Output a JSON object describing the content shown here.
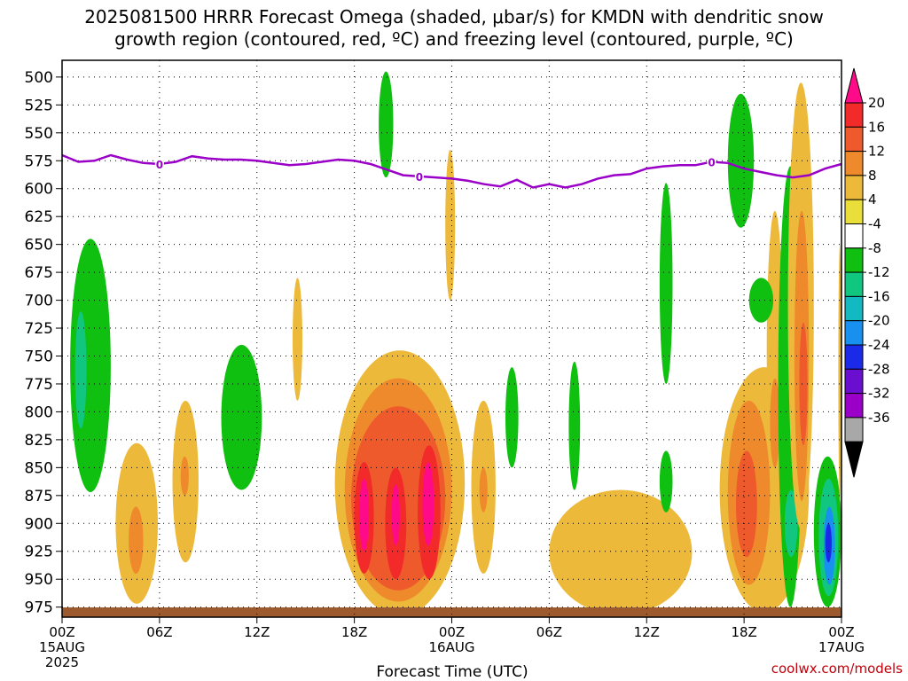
{
  "title": {
    "line1": "2025081500 HRRR Forecast Omega (shaded, μbar/s) for KMDN with dendritic snow",
    "line2": "growth region (contoured, red, ºC) and freezing level (contoured, purple, ºC)"
  },
  "xlabel": "Forecast Time (UTC)",
  "credit": "coolwx.com/models",
  "date_labels": [
    {
      "hour": 0,
      "lines": [
        "00Z",
        "15AUG",
        "2025"
      ]
    },
    {
      "hour": 24,
      "lines": [
        "00Z",
        "16AUG"
      ]
    },
    {
      "hour": 48,
      "lines": [
        "00Z",
        "17AUG"
      ]
    }
  ],
  "chart_data": {
    "type": "heatmap",
    "xlim": [
      0,
      48
    ],
    "ylim": [
      500,
      985
    ],
    "y_scale": "pressure (hPa), increasing downward",
    "x_ticks": [
      {
        "hour": 0,
        "label": "00Z"
      },
      {
        "hour": 6,
        "label": "06Z"
      },
      {
        "hour": 12,
        "label": "12Z"
      },
      {
        "hour": 18,
        "label": "18Z"
      },
      {
        "hour": 24,
        "label": "00Z"
      },
      {
        "hour": 30,
        "label": "06Z"
      },
      {
        "hour": 36,
        "label": "12Z"
      },
      {
        "hour": 42,
        "label": "18Z"
      },
      {
        "hour": 48,
        "label": "00Z"
      }
    ],
    "y_ticks": [
      500,
      525,
      550,
      575,
      600,
      625,
      650,
      675,
      700,
      725,
      750,
      775,
      800,
      825,
      850,
      875,
      900,
      925,
      950,
      975
    ],
    "grid": true,
    "colorbar": {
      "labels": [
        "20",
        "16",
        "12",
        "8",
        "4",
        "-4",
        "-8",
        "-12",
        "-16",
        "-20",
        "-24",
        "-28",
        "-32",
        "-36"
      ],
      "bins": [
        {
          "color": "#ff0a88",
          "value": 22
        },
        {
          "color": "#f22a2a",
          "value": 18
        },
        {
          "color": "#ee5a2b",
          "value": 14
        },
        {
          "color": "#ee8a2b",
          "value": 10
        },
        {
          "color": "#ecb93a",
          "value": 6
        },
        {
          "color": "#e9de3a",
          "value": 4
        },
        {
          "color": "#ffffff",
          "value": 0
        },
        {
          "color": "#10c010",
          "value": -6
        },
        {
          "color": "#11c780",
          "value": -10
        },
        {
          "color": "#13b9c0",
          "value": -14
        },
        {
          "color": "#1890f0",
          "value": -18
        },
        {
          "color": "#1b2ae8",
          "value": -22
        },
        {
          "color": "#6a0fd0",
          "value": -26
        },
        {
          "color": "#9b00c8",
          "value": -30
        },
        {
          "color": "#a8a8a8",
          "value": -34
        },
        {
          "color": "#000000",
          "value": -38
        }
      ]
    },
    "freezing_level": {
      "label": "0",
      "points": [
        [
          0,
          570
        ],
        [
          1,
          576
        ],
        [
          2,
          575
        ],
        [
          3,
          570
        ],
        [
          4,
          574
        ],
        [
          5,
          577
        ],
        [
          6,
          578
        ],
        [
          7,
          576
        ],
        [
          8,
          571
        ],
        [
          9,
          573
        ],
        [
          10,
          574
        ],
        [
          11,
          574
        ],
        [
          12,
          575
        ],
        [
          13,
          577
        ],
        [
          14,
          579
        ],
        [
          15,
          578
        ],
        [
          16,
          576
        ],
        [
          17,
          574
        ],
        [
          18,
          575
        ],
        [
          19,
          578
        ],
        [
          20,
          583
        ],
        [
          21,
          588
        ],
        [
          22,
          589
        ],
        [
          23,
          590
        ],
        [
          24,
          591
        ],
        [
          25,
          593
        ],
        [
          26,
          596
        ],
        [
          27,
          598
        ],
        [
          28,
          592
        ],
        [
          29,
          599
        ],
        [
          30,
          596
        ],
        [
          31,
          599
        ],
        [
          32,
          596
        ],
        [
          33,
          591
        ],
        [
          34,
          588
        ],
        [
          35,
          587
        ],
        [
          36,
          582
        ],
        [
          37,
          580
        ],
        [
          38,
          579
        ],
        [
          39,
          579
        ],
        [
          40,
          576
        ],
        [
          41,
          577
        ],
        [
          42,
          582
        ],
        [
          43,
          585
        ],
        [
          44,
          588
        ],
        [
          45,
          590
        ],
        [
          46,
          588
        ],
        [
          47,
          582
        ],
        [
          48,
          578
        ]
      ],
      "label_hours": [
        6,
        22,
        40
      ]
    },
    "omega_cells": [
      {
        "t": 0.5,
        "t1": 3,
        "p": 645,
        "p1": 872,
        "v": -6
      },
      {
        "t": 0.8,
        "t1": 1.5,
        "p": 710,
        "p1": 815,
        "v": -10
      },
      {
        "t": 3.3,
        "t1": 5.9,
        "p": 828,
        "p1": 972,
        "v": 6
      },
      {
        "t": 4.1,
        "t1": 5.0,
        "p": 885,
        "p1": 945,
        "v": 10
      },
      {
        "t": 6.8,
        "t1": 8.4,
        "p": 790,
        "p1": 935,
        "v": 6
      },
      {
        "t": 7.3,
        "t1": 7.8,
        "p": 840,
        "p1": 875,
        "v": 10
      },
      {
        "t": 9.8,
        "t1": 12.3,
        "p": 740,
        "p1": 870,
        "v": -6
      },
      {
        "t": 14.2,
        "t1": 14.8,
        "p": 680,
        "p1": 790,
        "v": 6
      },
      {
        "t": 16.8,
        "t1": 24.8,
        "p": 745,
        "p1": 983,
        "v": 6
      },
      {
        "t": 17.4,
        "t1": 24.0,
        "p": 770,
        "p1": 970,
        "v": 10
      },
      {
        "t": 17.8,
        "t1": 23.6,
        "p": 795,
        "p1": 960,
        "v": 14
      },
      {
        "t": 18.0,
        "t1": 19.2,
        "p": 845,
        "p1": 945,
        "v": 18
      },
      {
        "t": 18.3,
        "t1": 18.9,
        "p": 860,
        "p1": 925,
        "v": 22
      },
      {
        "t": 19.9,
        "t1": 21.2,
        "p": 850,
        "p1": 950,
        "v": 18
      },
      {
        "t": 20.3,
        "t1": 20.8,
        "p": 865,
        "p1": 920,
        "v": 22
      },
      {
        "t": 21.9,
        "t1": 23.3,
        "p": 830,
        "p1": 950,
        "v": 18
      },
      {
        "t": 22.2,
        "t1": 22.9,
        "p": 845,
        "p1": 920,
        "v": 22
      },
      {
        "t": 19.5,
        "t1": 20.4,
        "p": 495,
        "p1": 590,
        "v": -6
      },
      {
        "t": 23.6,
        "t1": 24.2,
        "p": 565,
        "p1": 700,
        "v": 6
      },
      {
        "t": 25.2,
        "t1": 26.7,
        "p": 790,
        "p1": 945,
        "v": 6
      },
      {
        "t": 25.7,
        "t1": 26.2,
        "p": 850,
        "p1": 890,
        "v": 10
      },
      {
        "t": 27.3,
        "t1": 28.1,
        "p": 760,
        "p1": 850,
        "v": -6
      },
      {
        "t": 31.2,
        "t1": 31.9,
        "p": 755,
        "p1": 870,
        "v": -6
      },
      {
        "t": 30.0,
        "t1": 38.8,
        "p": 870,
        "p1": 982,
        "v": 6
      },
      {
        "t": 36.8,
        "t1": 37.6,
        "p": 595,
        "p1": 775,
        "v": -6
      },
      {
        "t": 36.8,
        "t1": 37.6,
        "p": 835,
        "p1": 890,
        "v": -6
      },
      {
        "t": 40.5,
        "t1": 46.0,
        "p": 760,
        "p1": 980,
        "v": 6
      },
      {
        "t": 41.0,
        "t1": 43.6,
        "p": 790,
        "p1": 955,
        "v": 10
      },
      {
        "t": 41.5,
        "t1": 42.8,
        "p": 835,
        "p1": 930,
        "v": 14
      },
      {
        "t": 43.4,
        "t1": 44.4,
        "p": 620,
        "p1": 870,
        "v": 6
      },
      {
        "t": 43.6,
        "t1": 44.2,
        "p": 770,
        "p1": 850,
        "v": 10
      },
      {
        "t": 41.0,
        "t1": 42.6,
        "p": 515,
        "p1": 635,
        "v": -6
      },
      {
        "t": 42.3,
        "t1": 43.8,
        "p": 680,
        "p1": 720,
        "v": -6
      },
      {
        "t": 44.1,
        "t1": 45.6,
        "p": 580,
        "p1": 975,
        "v": -6
      },
      {
        "t": 44.5,
        "t1": 45.3,
        "p": 870,
        "p1": 930,
        "v": -12
      },
      {
        "t": 44.7,
        "t1": 46.3,
        "p": 505,
        "p1": 905,
        "v": 6
      },
      {
        "t": 45.1,
        "t1": 46.0,
        "p": 620,
        "p1": 880,
        "v": 10
      },
      {
        "t": 45.4,
        "t1": 45.9,
        "p": 720,
        "p1": 830,
        "v": 14
      },
      {
        "t": 46.3,
        "t1": 48.0,
        "p": 840,
        "p1": 975,
        "v": -6
      },
      {
        "t": 46.6,
        "t1": 47.8,
        "p": 860,
        "p1": 965,
        "v": -12
      },
      {
        "t": 46.9,
        "t1": 47.6,
        "p": 885,
        "p1": 955,
        "v": -18
      },
      {
        "t": 47.0,
        "t1": 47.4,
        "p": 900,
        "p1": 935,
        "v": -22
      },
      {
        "t": 47.8,
        "t1": 48.0,
        "p": 650,
        "p1": 880,
        "v": 6
      }
    ]
  }
}
